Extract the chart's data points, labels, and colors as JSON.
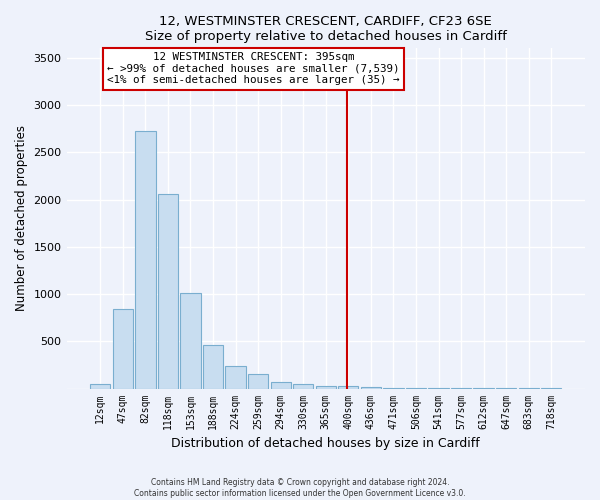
{
  "title1": "12, WESTMINSTER CRESCENT, CARDIFF, CF23 6SE",
  "title2": "Size of property relative to detached houses in Cardiff",
  "xlabel": "Distribution of detached houses by size in Cardiff",
  "ylabel": "Number of detached properties",
  "categories": [
    "12sqm",
    "47sqm",
    "82sqm",
    "118sqm",
    "153sqm",
    "188sqm",
    "224sqm",
    "259sqm",
    "294sqm",
    "330sqm",
    "365sqm",
    "400sqm",
    "436sqm",
    "471sqm",
    "506sqm",
    "541sqm",
    "577sqm",
    "612sqm",
    "647sqm",
    "683sqm",
    "718sqm"
  ],
  "values": [
    50,
    840,
    2720,
    2060,
    1010,
    460,
    240,
    155,
    70,
    45,
    30,
    25,
    15,
    10,
    5,
    3,
    2,
    2,
    1,
    1,
    1
  ],
  "bar_color": "#c8ddf0",
  "bar_edge_color": "#7aaecf",
  "property_sqm": 395,
  "annotation_line1": "12 WESTMINSTER CRESCENT: 395sqm",
  "annotation_line2": "← >99% of detached houses are smaller (7,539)",
  "annotation_line3": "<1% of semi-detached houses are larger (35) →",
  "annotation_box_color": "#ffffff",
  "annotation_border_color": "#cc0000",
  "vline_color": "#cc0000",
  "ylim": [
    0,
    3600
  ],
  "yticks": [
    0,
    500,
    1000,
    1500,
    2000,
    2500,
    3000,
    3500
  ],
  "footer1": "Contains HM Land Registry data © Crown copyright and database right 2024.",
  "footer2": "Contains public sector information licensed under the Open Government Licence v3.0.",
  "bg_color": "#eef2fb",
  "grid_color": "#ffffff"
}
